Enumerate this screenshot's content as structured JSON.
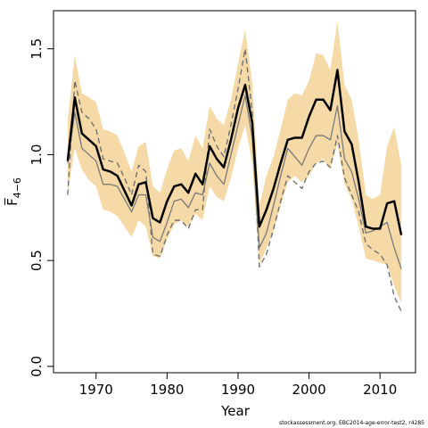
{
  "chart_data": {
    "type": "line",
    "xlabel": "Year",
    "ylabel": "F̅",
    "ylabel_sub": "4−6",
    "xlim": [
      1964,
      2015
    ],
    "ylim": [
      -0.03,
      1.68
    ],
    "x_ticks": [
      1970,
      1980,
      1990,
      2000,
      2010
    ],
    "y_ticks": [
      0.0,
      0.5,
      1.0,
      1.5
    ],
    "y_tick_labels": [
      "0.0",
      "0.5",
      "1.0",
      "1.5"
    ],
    "band_color": "#f5d9a6",
    "x": [
      1966,
      1967,
      1968,
      1969,
      1970,
      1971,
      1972,
      1973,
      1974,
      1975,
      1976,
      1977,
      1978,
      1979,
      1980,
      1981,
      1982,
      1983,
      1984,
      1985,
      1986,
      1987,
      1988,
      1989,
      1990,
      1991,
      1992,
      1993,
      1994,
      1995,
      1996,
      1997,
      1998,
      1999,
      2000,
      2001,
      2002,
      2003,
      2004,
      2005,
      2006,
      2007,
      2008,
      2009,
      2010,
      2011,
      2012,
      2013
    ],
    "band_upper": [
      1.16,
      1.47,
      1.29,
      1.27,
      1.25,
      1.12,
      1.11,
      1.09,
      1.01,
      0.92,
      1.04,
      1.06,
      0.85,
      0.82,
      0.93,
      1.02,
      1.03,
      0.97,
      1.09,
      1.03,
      1.23,
      1.17,
      1.14,
      1.26,
      1.43,
      1.59,
      1.34,
      0.76,
      0.9,
      0.99,
      1.12,
      1.26,
      1.29,
      1.28,
      1.35,
      1.48,
      1.47,
      1.4,
      1.63,
      1.33,
      1.26,
      1.07,
      0.81,
      0.79,
      0.81,
      1.04,
      1.13,
      0.95
    ],
    "band_lower": [
      0.82,
      1.03,
      0.93,
      0.88,
      0.85,
      0.74,
      0.73,
      0.71,
      0.66,
      0.61,
      0.69,
      0.66,
      0.52,
      0.51,
      0.6,
      0.67,
      0.69,
      0.66,
      0.72,
      0.69,
      0.85,
      0.8,
      0.78,
      0.89,
      1.03,
      1.14,
      0.96,
      0.48,
      0.56,
      0.64,
      0.76,
      0.87,
      0.9,
      0.87,
      0.9,
      0.96,
      0.98,
      0.93,
      1.05,
      0.86,
      0.79,
      0.66,
      0.51,
      0.5,
      0.49,
      0.48,
      0.38,
      0.3
    ],
    "series": [
      {
        "name": "",
        "role": "black-solid",
        "color": "#000000",
        "values": [
          0.97,
          1.27,
          1.1,
          1.07,
          1.04,
          0.93,
          0.92,
          0.9,
          0.83,
          0.76,
          0.86,
          0.87,
          0.7,
          0.68,
          0.78,
          0.85,
          0.86,
          0.82,
          0.91,
          0.86,
          1.04,
          0.98,
          0.94,
          1.07,
          1.22,
          1.33,
          1.15,
          0.66,
          0.74,
          0.84,
          0.96,
          1.07,
          1.08,
          1.08,
          1.18,
          1.26,
          1.26,
          1.21,
          1.4,
          1.11,
          1.05,
          0.87,
          0.66,
          0.65,
          0.65,
          0.77,
          0.78,
          0.62
        ]
      },
      {
        "name": "",
        "role": "grey-solid",
        "color": "#7a7a7a",
        "values": [
          0.96,
          1.2,
          1.03,
          1.0,
          0.97,
          0.86,
          0.86,
          0.85,
          0.79,
          0.73,
          0.81,
          0.81,
          0.61,
          0.59,
          0.68,
          0.78,
          0.79,
          0.75,
          0.82,
          0.81,
          0.96,
          0.9,
          0.86,
          1.0,
          1.14,
          1.28,
          1.08,
          0.56,
          0.63,
          0.76,
          0.9,
          1.03,
          0.99,
          0.95,
          1.03,
          1.09,
          1.09,
          1.07,
          1.23,
          0.98,
          0.92,
          0.79,
          0.63,
          0.64,
          0.66,
          0.68,
          0.56,
          0.46
        ]
      },
      {
        "name": "",
        "role": "grey-dashed",
        "color": "#6a6a6a",
        "values": [
          0.81,
          1.35,
          1.2,
          1.17,
          1.12,
          0.98,
          0.97,
          0.96,
          0.89,
          0.81,
          0.95,
          0.92,
          0.53,
          0.52,
          0.62,
          0.69,
          0.69,
          0.65,
          0.74,
          0.74,
          1.12,
          1.04,
          0.99,
          1.14,
          1.31,
          1.5,
          1.2,
          0.47,
          0.53,
          0.65,
          0.78,
          0.9,
          0.87,
          0.84,
          0.92,
          0.96,
          0.97,
          0.94,
          1.09,
          0.89,
          0.81,
          0.73,
          0.58,
          0.55,
          0.53,
          0.48,
          0.33,
          0.26
        ]
      }
    ]
  },
  "footer": {
    "text": "stockassessment.org, EBC2014-age-error-test2, r4285"
  }
}
